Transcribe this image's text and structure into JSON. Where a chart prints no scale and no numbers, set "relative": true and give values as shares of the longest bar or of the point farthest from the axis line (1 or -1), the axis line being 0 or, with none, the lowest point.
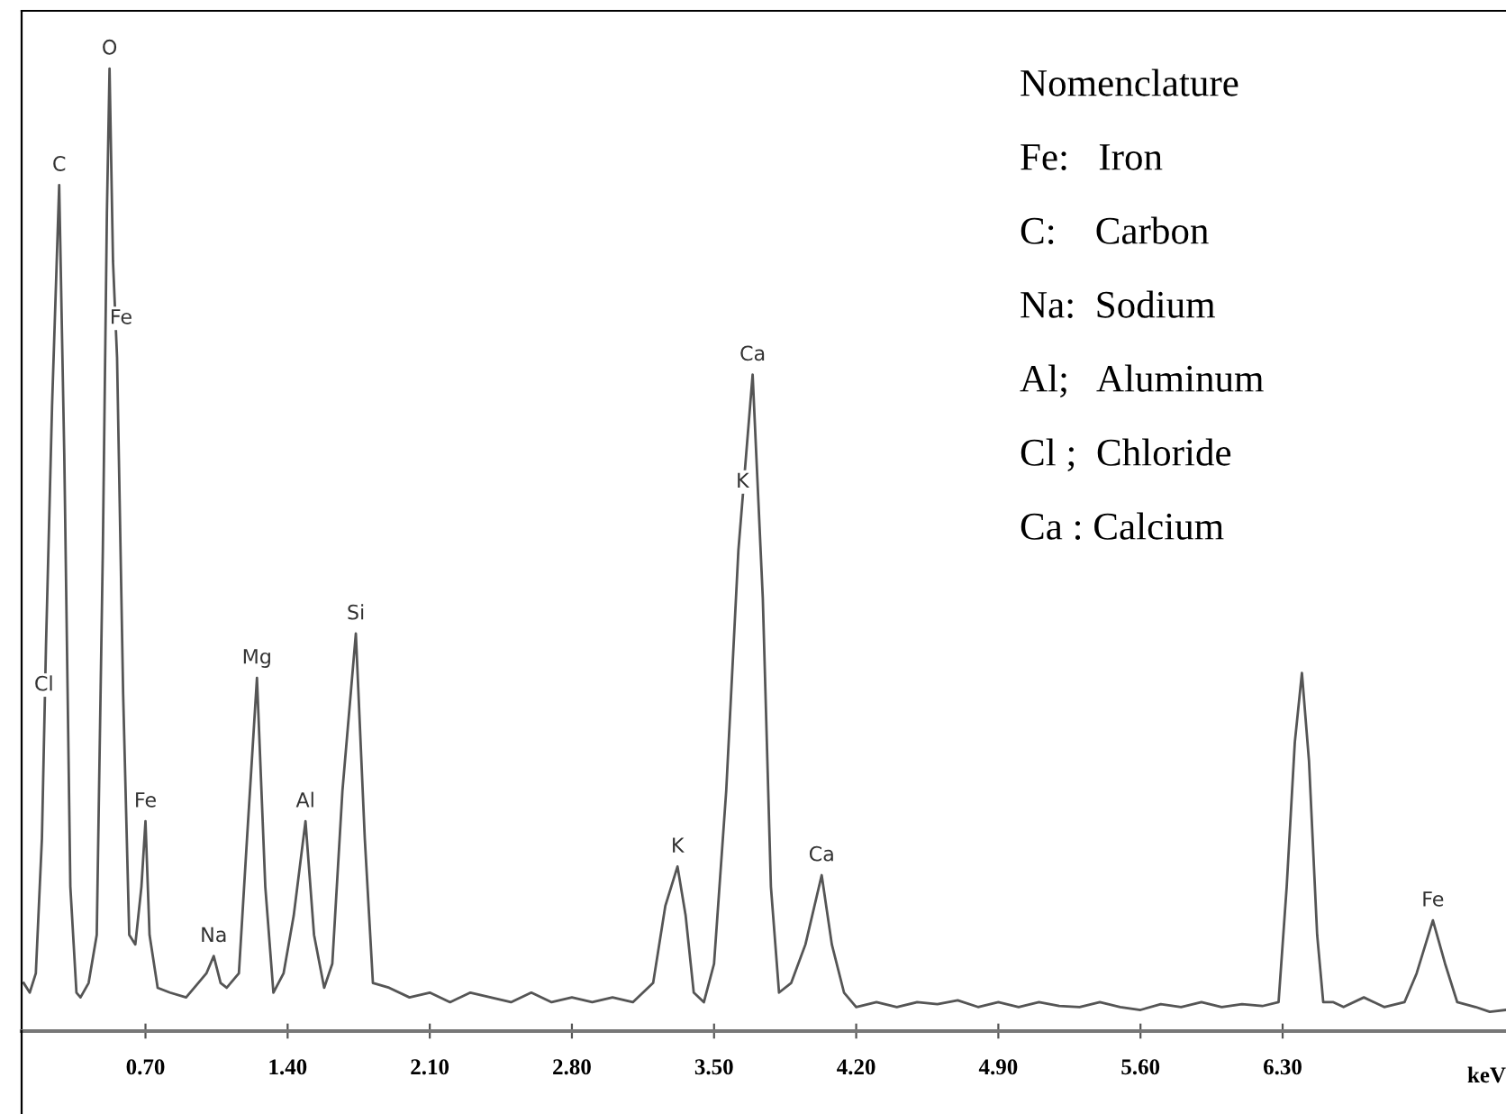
{
  "chart_data": {
    "type": "line",
    "relative": true,
    "xlabel": "keV",
    "color": "#555555",
    "xlim": [
      0.09,
      7.4
    ],
    "xticks": [
      {
        "value": 0.7,
        "label": "0.70"
      },
      {
        "value": 1.4,
        "label": "1.40"
      },
      {
        "value": 2.1,
        "label": "2.10"
      },
      {
        "value": 2.8,
        "label": "2.80"
      },
      {
        "value": 3.5,
        "label": "3.50"
      },
      {
        "value": 4.2,
        "label": "4.20"
      },
      {
        "value": 4.9,
        "label": "4.90"
      },
      {
        "value": 5.6,
        "label": "5.60"
      },
      {
        "value": 6.3,
        "label": "6.30"
      }
    ],
    "x": [
      0.1,
      0.13,
      0.16,
      0.19,
      0.21,
      0.24,
      0.275,
      0.3,
      0.33,
      0.36,
      0.38,
      0.42,
      0.46,
      0.49,
      0.51,
      0.523,
      0.54,
      0.56,
      0.59,
      0.62,
      0.65,
      0.68,
      0.7,
      0.72,
      0.76,
      0.82,
      0.9,
      0.96,
      1.0,
      1.036,
      1.07,
      1.1,
      1.16,
      1.2,
      1.249,
      1.29,
      1.33,
      1.38,
      1.43,
      1.488,
      1.53,
      1.58,
      1.62,
      1.67,
      1.736,
      1.78,
      1.82,
      1.9,
      2.0,
      2.1,
      2.2,
      2.3,
      2.4,
      2.5,
      2.6,
      2.7,
      2.8,
      2.9,
      3.0,
      3.1,
      3.2,
      3.26,
      3.32,
      3.36,
      3.4,
      3.45,
      3.5,
      3.56,
      3.62,
      3.69,
      3.74,
      3.78,
      3.82,
      3.88,
      3.95,
      4.03,
      4.08,
      4.14,
      4.2,
      4.3,
      4.4,
      4.5,
      4.6,
      4.7,
      4.8,
      4.9,
      5.0,
      5.1,
      5.2,
      5.3,
      5.4,
      5.5,
      5.6,
      5.7,
      5.8,
      5.9,
      6.0,
      6.1,
      6.2,
      6.28,
      6.32,
      6.36,
      6.395,
      6.43,
      6.47,
      6.5,
      6.55,
      6.6,
      6.7,
      6.8,
      6.9,
      6.96,
      7.04,
      7.1,
      7.16,
      7.25,
      7.32,
      7.4
    ],
    "values": [
      0.05,
      0.04,
      0.06,
      0.2,
      0.4,
      0.65,
      0.879,
      0.6,
      0.15,
      0.04,
      0.035,
      0.05,
      0.1,
      0.5,
      0.85,
      1.0,
      0.8,
      0.7,
      0.35,
      0.1,
      0.09,
      0.15,
      0.218,
      0.1,
      0.045,
      0.04,
      0.035,
      0.05,
      0.06,
      0.078,
      0.05,
      0.045,
      0.06,
      0.2,
      0.367,
      0.15,
      0.04,
      0.06,
      0.12,
      0.218,
      0.1,
      0.045,
      0.07,
      0.25,
      0.413,
      0.2,
      0.05,
      0.045,
      0.035,
      0.04,
      0.03,
      0.04,
      0.035,
      0.03,
      0.04,
      0.03,
      0.035,
      0.03,
      0.035,
      0.03,
      0.05,
      0.13,
      0.171,
      0.12,
      0.04,
      0.03,
      0.07,
      0.25,
      0.5,
      0.682,
      0.45,
      0.15,
      0.04,
      0.05,
      0.09,
      0.162,
      0.09,
      0.04,
      0.025,
      0.03,
      0.025,
      0.03,
      0.028,
      0.032,
      0.025,
      0.03,
      0.025,
      0.03,
      0.026,
      0.025,
      0.03,
      0.025,
      0.022,
      0.028,
      0.025,
      0.03,
      0.025,
      0.028,
      0.026,
      0.03,
      0.15,
      0.3,
      0.372,
      0.28,
      0.1,
      0.03,
      0.03,
      0.025,
      0.035,
      0.025,
      0.03,
      0.06,
      0.115,
      0.07,
      0.03,
      0.025,
      0.02,
      0.022
    ],
    "annotations": [
      {
        "text": "Cl",
        "x": 0.2,
        "y": 0.339
      },
      {
        "text": "C",
        "x": 0.275,
        "y": 0.879
      },
      {
        "text": "O",
        "x": 0.523,
        "y": 1.0
      },
      {
        "text": "Fe",
        "x": 0.58,
        "y": 0.72
      },
      {
        "text": "Fe",
        "x": 0.7,
        "y": 0.218
      },
      {
        "text": "Na",
        "x": 1.036,
        "y": 0.078
      },
      {
        "text": "Mg",
        "x": 1.249,
        "y": 0.367
      },
      {
        "text": "Al",
        "x": 1.488,
        "y": 0.218
      },
      {
        "text": "Si",
        "x": 1.736,
        "y": 0.413
      },
      {
        "text": "K",
        "x": 3.32,
        "y": 0.171
      },
      {
        "text": "K",
        "x": 3.64,
        "y": 0.55
      },
      {
        "text": "Ca",
        "x": 3.69,
        "y": 0.682
      },
      {
        "text": "Ca",
        "x": 4.03,
        "y": 0.162
      },
      {
        "text": "Fe",
        "x": 7.04,
        "y": 0.115
      },
      "Nomenclature",
      "Fe:   Iron",
      "C:    Carbon",
      "Na:  Sodium",
      "Al;   Aluminum",
      "Cl ;  Chloride",
      "Ca : Calcium"
    ],
    "grid": false,
    "legend": false
  }
}
